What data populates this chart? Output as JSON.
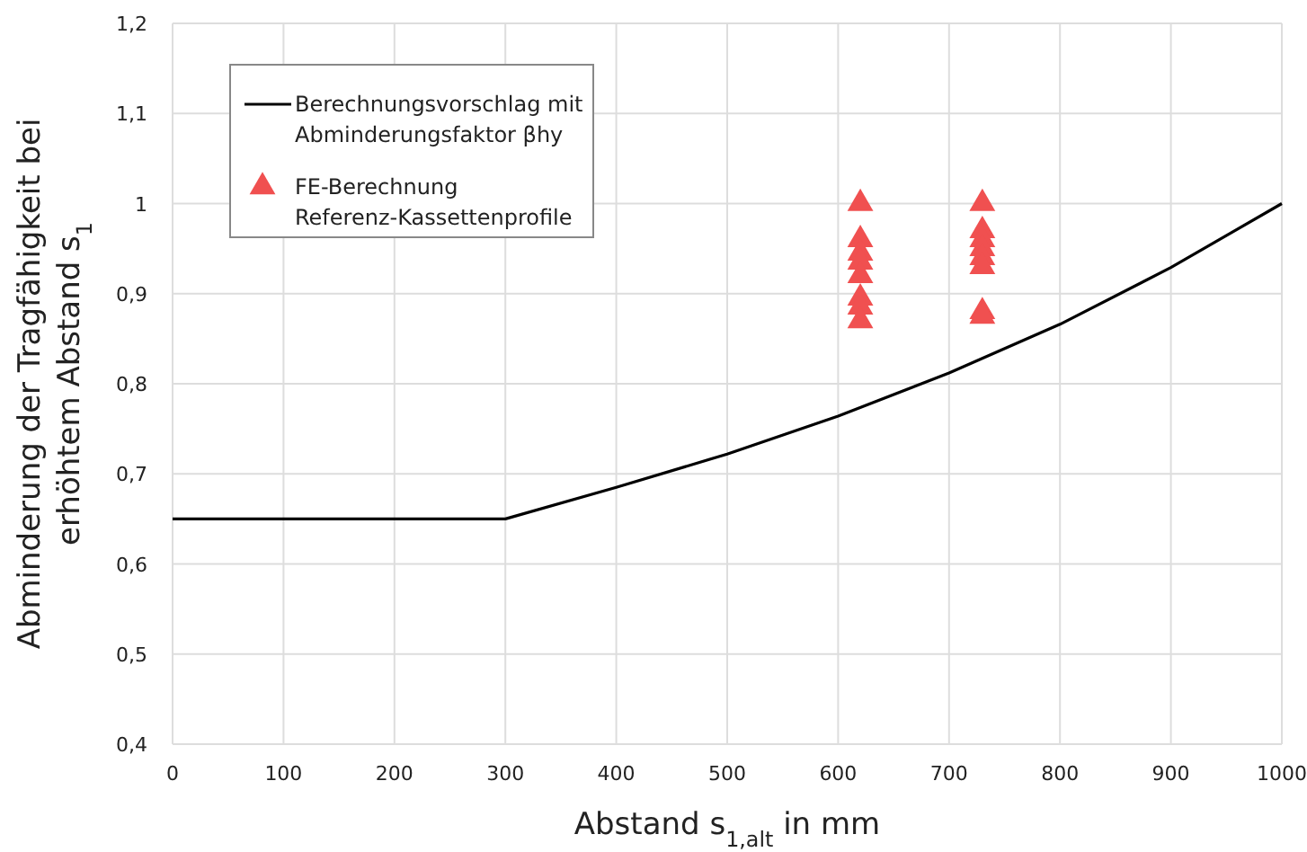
{
  "chart_data": {
    "type": "line",
    "xlabel": "Abstand s$_{1,alt}$ in mm",
    "ylabel": "Abminderung der Tragfähigkeit bei erhöhtem Abstand s$_{1}$",
    "xlim": [
      0,
      1000
    ],
    "xticks": [
      0,
      100,
      200,
      300,
      400,
      500,
      600,
      700,
      800,
      900,
      1000
    ],
    "ylim": [
      0.4,
      1.2
    ],
    "yticks": [
      {
        "value": 0.4,
        "label": "0,4"
      },
      {
        "value": 0.5,
        "label": "0,5"
      },
      {
        "value": 0.6,
        "label": "0,6"
      },
      {
        "value": 0.7,
        "label": "0,7"
      },
      {
        "value": 0.8,
        "label": "0,8"
      },
      {
        "value": 0.9,
        "label": "0,9"
      },
      1,
      {
        "value": 1.1,
        "label": "1,1"
      },
      {
        "value": 1.2,
        "label": "1,2"
      }
    ],
    "grid": true,
    "legend": "top left",
    "series": [
      {
        "name": "Berechnungsvorschlag mit Abminderungsfaktor βhy",
        "color": "#000000",
        "marker": "none",
        "line_style": "solid",
        "x": [
          0,
          300,
          400,
          500,
          600,
          700,
          800,
          900,
          1000
        ],
        "values": [
          0.65,
          0.65,
          0.685,
          0.722,
          0.764,
          0.812,
          0.866,
          0.929,
          1.0
        ]
      },
      {
        "name": "FE-Berechnung Referenz-Kassettenprofile",
        "type": "scatter",
        "color": "#f05050",
        "marker": "triangle",
        "x": [
          620,
          620,
          620,
          620,
          620,
          620,
          620,
          620,
          730,
          730,
          730,
          730,
          730,
          730,
          730,
          730
        ],
        "values": [
          1.0,
          0.96,
          0.945,
          0.935,
          0.92,
          0.895,
          0.885,
          0.87,
          1.0,
          0.97,
          0.96,
          0.95,
          0.94,
          0.93,
          0.88,
          0.875
        ]
      }
    ]
  }
}
